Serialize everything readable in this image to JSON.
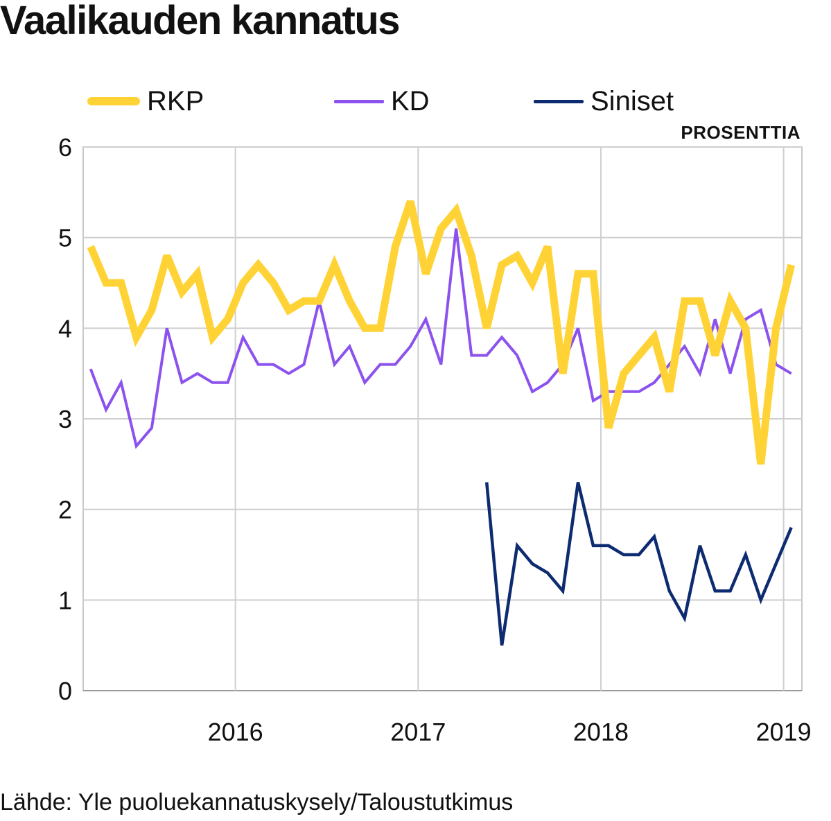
{
  "title": "Vaalikauden kannatus",
  "unit_label": "PROSENTTIA",
  "source": "Lähde: Yle puoluekannatuskysely/Taloustutkimus",
  "legend": [
    {
      "name": "RKP",
      "color": "#ffd335"
    },
    {
      "name": "KD",
      "color": "#8c52ee"
    },
    {
      "name": "Siniset",
      "color": "#0d2b70"
    }
  ],
  "chart_data": {
    "type": "line",
    "title": "Vaalikauden kannatus",
    "ylabel": "PROSENTTIA",
    "xlabel": "",
    "ylim": [
      0,
      6
    ],
    "xlim": [
      2015.167,
      2019.1
    ],
    "yticks": [
      0,
      1,
      2,
      3,
      4,
      5,
      6
    ],
    "xticks": [
      {
        "label": "2016",
        "value": 2016
      },
      {
        "label": "2017",
        "value": 2017
      },
      {
        "label": "2018",
        "value": 2018
      },
      {
        "label": "2019",
        "value": 2019
      }
    ],
    "grid": true,
    "legend_position": "top",
    "series": [
      {
        "name": "RKP",
        "color": "#ffd335",
        "x": [
          2015.208,
          2015.292,
          2015.375,
          2015.458,
          2015.542,
          2015.625,
          2015.708,
          2015.792,
          2015.875,
          2015.958,
          2016.042,
          2016.125,
          2016.208,
          2016.292,
          2016.375,
          2016.458,
          2016.542,
          2016.625,
          2016.708,
          2016.792,
          2016.875,
          2016.958,
          2017.042,
          2017.125,
          2017.208,
          2017.292,
          2017.375,
          2017.458,
          2017.542,
          2017.625,
          2017.708,
          2017.792,
          2017.875,
          2017.958,
          2018.042,
          2018.125,
          2018.208,
          2018.292,
          2018.375,
          2018.458,
          2018.542,
          2018.625,
          2018.708,
          2018.792,
          2018.875,
          2018.958,
          2019.042
        ],
        "values": [
          4.9,
          4.5,
          4.5,
          3.9,
          4.2,
          4.8,
          4.4,
          4.6,
          3.9,
          4.1,
          4.5,
          4.7,
          4.5,
          4.2,
          4.3,
          4.3,
          4.7,
          4.3,
          4.0,
          4.0,
          4.9,
          5.4,
          4.6,
          5.1,
          5.3,
          4.8,
          4.0,
          4.7,
          4.8,
          4.5,
          4.9,
          3.5,
          4.6,
          4.6,
          2.9,
          3.5,
          3.7,
          3.9,
          3.3,
          4.3,
          4.3,
          3.7,
          4.3,
          4.0,
          2.5,
          4.0,
          4.7
        ]
      },
      {
        "name": "KD",
        "color": "#8c52ee",
        "x": [
          2015.208,
          2015.292,
          2015.375,
          2015.458,
          2015.542,
          2015.625,
          2015.708,
          2015.792,
          2015.875,
          2015.958,
          2016.042,
          2016.125,
          2016.208,
          2016.292,
          2016.375,
          2016.458,
          2016.542,
          2016.625,
          2016.708,
          2016.792,
          2016.875,
          2016.958,
          2017.042,
          2017.125,
          2017.208,
          2017.292,
          2017.375,
          2017.458,
          2017.542,
          2017.625,
          2017.708,
          2017.792,
          2017.875,
          2017.958,
          2018.042,
          2018.125,
          2018.208,
          2018.292,
          2018.375,
          2018.458,
          2018.542,
          2018.625,
          2018.708,
          2018.792,
          2018.875,
          2018.958,
          2019.042
        ],
        "values": [
          3.55,
          3.1,
          3.4,
          2.7,
          2.9,
          4.0,
          3.4,
          3.5,
          3.4,
          3.4,
          3.9,
          3.6,
          3.6,
          3.5,
          3.6,
          4.3,
          3.6,
          3.8,
          3.4,
          3.6,
          3.6,
          3.8,
          4.1,
          3.6,
          5.1,
          3.7,
          3.7,
          3.9,
          3.7,
          3.3,
          3.4,
          3.6,
          4.0,
          3.2,
          3.3,
          3.3,
          3.3,
          3.4,
          3.6,
          3.8,
          3.5,
          4.1,
          3.5,
          4.1,
          4.2,
          3.6,
          3.5
        ]
      },
      {
        "name": "Siniset",
        "color": "#0d2b70",
        "x": [
          2017.375,
          2017.458,
          2017.542,
          2017.625,
          2017.708,
          2017.792,
          2017.875,
          2017.958,
          2018.042,
          2018.125,
          2018.208,
          2018.292,
          2018.375,
          2018.458,
          2018.542,
          2018.625,
          2018.708,
          2018.792,
          2018.875,
          2018.958,
          2019.042
        ],
        "values": [
          2.3,
          0.5,
          1.6,
          1.4,
          1.3,
          1.1,
          2.3,
          1.6,
          1.6,
          1.5,
          1.5,
          1.7,
          1.1,
          0.8,
          1.6,
          1.1,
          1.1,
          1.5,
          1.0,
          1.4,
          1.8
        ]
      }
    ]
  }
}
